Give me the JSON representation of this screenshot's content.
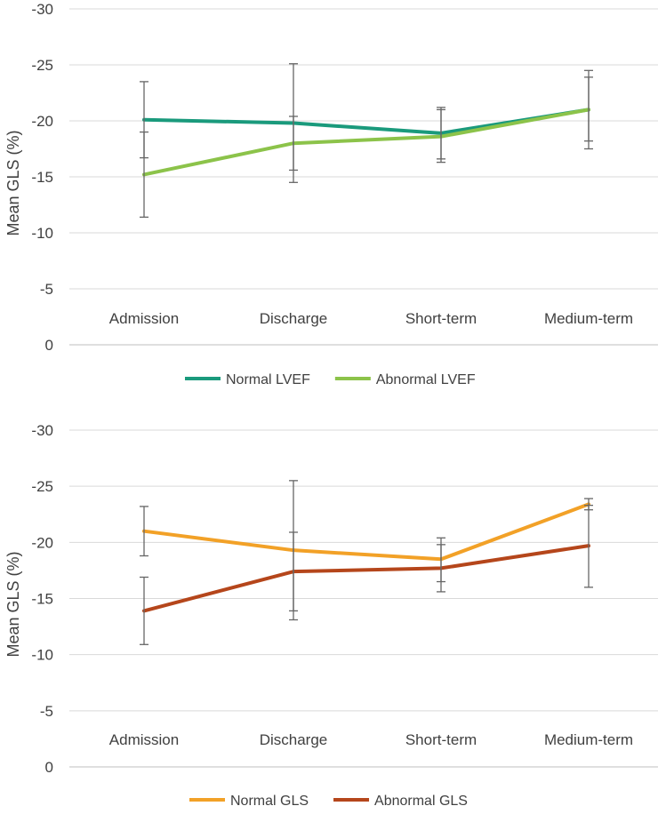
{
  "chart_data": [
    {
      "type": "line",
      "title": "",
      "xlabel": "",
      "ylabel": "Mean GLS (%)",
      "ylim": [
        0,
        -30
      ],
      "yticks": [
        0,
        -5,
        -10,
        -15,
        -20,
        -25,
        -30
      ],
      "categories": [
        "Admission",
        "Discharge",
        "Short-term",
        "Medium-term"
      ],
      "grid": true,
      "legend_position": "bottom",
      "series": [
        {
          "name": "Normal LVEF",
          "color": "#1a9a7c",
          "values": [
            -20.1,
            -19.8,
            -18.9,
            -21.0
          ],
          "error_high": [
            -23.5,
            -25.1,
            -21.2,
            -24.5
          ],
          "error_low": [
            -16.7,
            -15.6,
            -16.6,
            -17.5
          ]
        },
        {
          "name": "Abnormal LVEF",
          "color": "#8cc34a",
          "values": [
            -15.2,
            -18.0,
            -18.6,
            -21.0
          ],
          "error_high": [
            -19.0,
            -20.4,
            -21.0,
            -23.9
          ],
          "error_low": [
            -11.4,
            -14.5,
            -16.3,
            -18.2
          ]
        }
      ]
    },
    {
      "type": "line",
      "title": "",
      "xlabel": "",
      "ylabel": "Mean GLS (%)",
      "ylim": [
        0,
        -30
      ],
      "yticks": [
        0,
        -5,
        -10,
        -15,
        -20,
        -25,
        -30
      ],
      "categories": [
        "Admission",
        "Discharge",
        "Short-term",
        "Medium-term"
      ],
      "grid": true,
      "legend_position": "bottom",
      "series": [
        {
          "name": "Normal GLS",
          "color": "#f2a127",
          "values": [
            -21.0,
            -19.3,
            -18.5,
            -23.4
          ],
          "error_high": [
            -23.2,
            -25.5,
            -20.4,
            -23.9
          ],
          "error_low": [
            -18.8,
            -13.1,
            -16.5,
            -22.9
          ]
        },
        {
          "name": "Abnormal GLS",
          "color": "#b5461b",
          "values": [
            -13.9,
            -17.4,
            -17.7,
            -19.7
          ],
          "error_high": [
            -16.9,
            -20.9,
            -19.8,
            -23.3
          ],
          "error_low": [
            -10.9,
            -13.9,
            -15.6,
            -16.0
          ]
        }
      ]
    }
  ]
}
